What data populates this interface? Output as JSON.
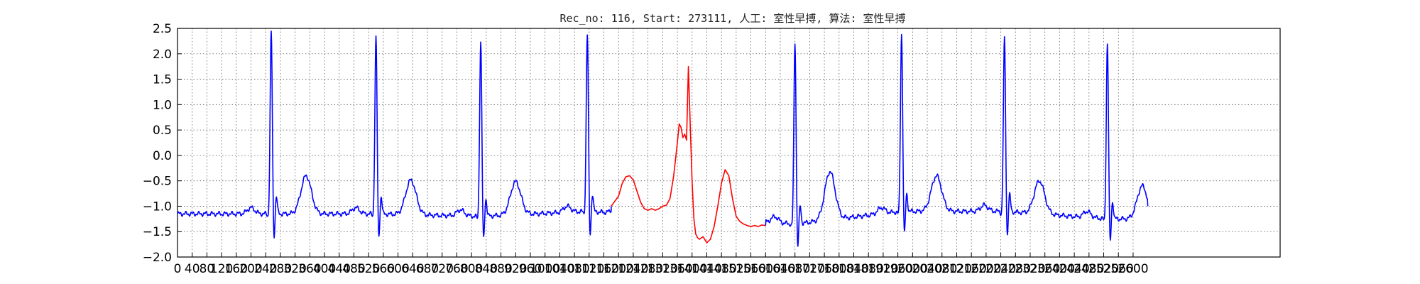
{
  "chart_data": {
    "type": "line",
    "title": "Rec_no: 116, Start: 273111, 人工: 室性早搏, 算法: 室性早搏",
    "xlabel": "",
    "ylabel": "",
    "xlim": [
      0,
      3000
    ],
    "ylim": [
      -2.0,
      2.5
    ],
    "x_step": 40,
    "grid": true,
    "y_ticks": [
      {
        "value": -2.0,
        "label": "−2.0"
      },
      {
        "value": -1.5,
        "label": "−1.5"
      },
      {
        "value": -1.0,
        "label": "−1.0"
      },
      {
        "value": -0.5,
        "label": "−0.5"
      },
      {
        "value": 0.0,
        "label": "0.0"
      },
      {
        "value": 0.5,
        "label": "0.5"
      },
      {
        "value": 1.0,
        "label": "1.0"
      },
      {
        "value": 1.5,
        "label": "1.5"
      },
      {
        "value": 2.0,
        "label": "2.0"
      },
      {
        "value": 2.5,
        "label": "2.5"
      }
    ],
    "x_ticks": [
      0,
      40,
      80,
      120,
      160,
      200,
      240,
      280,
      320,
      360,
      400,
      440,
      480,
      520,
      560,
      600,
      640,
      680,
      720,
      760,
      800,
      840,
      880,
      920,
      960,
      1000,
      1040,
      1080,
      1120,
      1160,
      1200,
      1240,
      1280,
      1320,
      1360,
      1400,
      1440,
      1480,
      1520,
      1560,
      1600,
      1640,
      1680,
      1720,
      1760,
      1800,
      1840,
      1880,
      1920,
      1960,
      2000,
      2040,
      2080,
      2120,
      2160,
      2200,
      2240,
      2280,
      2320,
      2360,
      2400,
      2440,
      2480,
      2520,
      2560,
      2600
    ],
    "series_colors": {
      "normal": "#0000ff",
      "highlight": "#ff0000"
    },
    "normal_beats": [
      {
        "r": 255,
        "r_amp": 2.45,
        "baseline": -1.15,
        "t_amp": 0.75
      },
      {
        "r": 540,
        "r_amp": 2.35,
        "baseline": -1.15,
        "t_amp": 0.68
      },
      {
        "r": 825,
        "r_amp": 2.25,
        "baseline": -1.2,
        "t_amp": 0.65
      },
      {
        "r": 1115,
        "r_amp": 2.4,
        "baseline": -1.1,
        "t_amp": 0.6
      },
      {
        "r": 1680,
        "r_amp": 2.25,
        "baseline": -1.35,
        "t_amp": 0.95
      },
      {
        "r": 1970,
        "r_amp": 2.42,
        "baseline": -1.1,
        "t_amp": 0.7
      },
      {
        "r": 2250,
        "r_amp": 2.32,
        "baseline": -1.1,
        "t_amp": 0.65
      },
      {
        "r": 2530,
        "r_amp": 2.22,
        "baseline": -1.25,
        "t_amp": 0.65
      }
    ],
    "highlight_segment": {
      "x": [
        1180,
        1200,
        1210,
        1220,
        1230,
        1240,
        1250,
        1260,
        1270,
        1280,
        1290,
        1300,
        1310,
        1320,
        1330,
        1340,
        1350,
        1360,
        1365,
        1370,
        1375,
        1380,
        1385,
        1390,
        1395,
        1400,
        1405,
        1410,
        1415,
        1420,
        1430,
        1440,
        1450,
        1460,
        1470,
        1480,
        1490,
        1500,
        1510,
        1520,
        1530,
        1540,
        1550,
        1560,
        1570,
        1580,
        1590,
        1600
      ],
      "y": [
        -1.0,
        -0.8,
        -0.55,
        -0.42,
        -0.4,
        -0.48,
        -0.7,
        -0.92,
        -1.05,
        -1.08,
        -1.05,
        -1.08,
        -1.05,
        -1.0,
        -0.98,
        -0.85,
        -0.4,
        0.25,
        0.62,
        0.55,
        0.35,
        0.42,
        0.3,
        1.75,
        0.6,
        -0.5,
        -1.25,
        -1.55,
        -1.62,
        -1.65,
        -1.6,
        -1.72,
        -1.65,
        -1.4,
        -1.0,
        -0.55,
        -0.28,
        -0.4,
        -0.85,
        -1.2,
        -1.3,
        -1.35,
        -1.38,
        -1.4,
        -1.38,
        -1.4,
        -1.37,
        -1.38
      ]
    },
    "end_x": 2640,
    "end_y": -1.0
  }
}
